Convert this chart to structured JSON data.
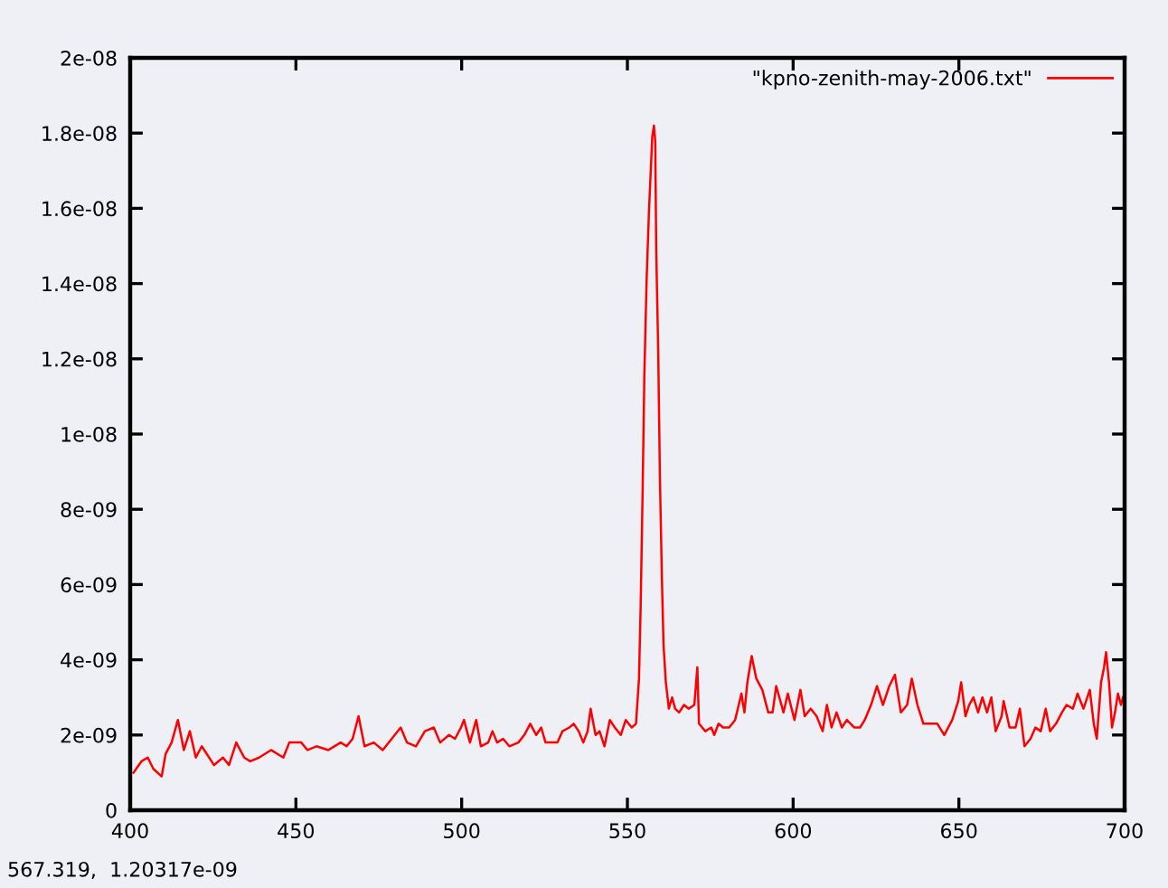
{
  "chart_data": {
    "type": "line",
    "x": [
      401,
      403.4,
      405.3,
      407,
      409.5,
      410.7,
      412.5,
      414.4,
      416.2,
      418,
      419.8,
      421.6,
      425.3,
      428,
      429.8,
      432,
      434.4,
      436.2,
      438.9,
      442.5,
      446.2,
      448,
      451.6,
      453.5,
      456.2,
      459.8,
      463.5,
      465.3,
      467.1,
      468.9,
      470.7,
      473.5,
      476.2,
      478.9,
      481.6,
      483.5,
      486.2,
      488.9,
      491.6,
      493.5,
      496.2,
      498,
      499.8,
      500.7,
      502.5,
      504.4,
      505.8,
      508,
      509.3,
      510.7,
      512.5,
      514.4,
      517.1,
      518.9,
      520.7,
      522.5,
      524,
      525.3,
      527.1,
      528.9,
      530.4,
      532.5,
      533.8,
      535.3,
      536.7,
      538,
      538.9,
      540.4,
      541.6,
      543.1,
      544.7,
      546.2,
      548,
      549.5,
      551.3,
      552.6,
      553.5,
      554,
      554.6,
      555.1,
      555.8,
      556.5,
      557.1,
      557.5,
      558,
      558.4,
      558.7,
      559.3,
      559.8,
      560.4,
      560.9,
      561.6,
      562.5,
      563.5,
      564.4,
      565.6,
      567.1,
      568.5,
      570.2,
      571.1,
      571.6,
      573.5,
      575.3,
      576.2,
      577.5,
      578.9,
      580.7,
      582.5,
      584.4,
      585.3,
      586.2,
      587.5,
      588.9,
      590.7,
      592.5,
      593.8,
      594.9,
      597.1,
      598.4,
      600.4,
      602.2,
      603.5,
      605.3,
      607.1,
      608.9,
      610.2,
      611.6,
      613.1,
      614.7,
      616.2,
      618.4,
      620.2,
      621.6,
      623.5,
      625.3,
      627.1,
      629,
      630.7,
      632.5,
      634.4,
      635.8,
      637.5,
      639.3,
      641.6,
      643.5,
      645.6,
      648,
      649.8,
      650.7,
      652,
      653.1,
      654.4,
      655.8,
      657.1,
      658.5,
      659.8,
      661.1,
      662.9,
      663.5,
      665.3,
      667.1,
      668.4,
      669.8,
      671.6,
      673.1,
      674.7,
      676.2,
      677.5,
      679.3,
      681.1,
      682.5,
      684.4,
      685.8,
      687.6,
      689.5,
      690.7,
      691.6,
      692.9,
      693.8,
      694.4,
      695.3,
      696.2,
      697.1,
      698,
      698.9,
      699.5
    ],
    "series": [
      {
        "name": "\"kpno-zenith-may-2006.txt\"",
        "color": "#ff0000",
        "values": [
          1e-09,
          1.3e-09,
          1.4e-09,
          1.1e-09,
          9e-10,
          1.5e-09,
          1.8e-09,
          2.4e-09,
          1.6e-09,
          2.1e-09,
          1.4e-09,
          1.7e-09,
          1.2e-09,
          1.4e-09,
          1.2e-09,
          1.8e-09,
          1.4e-09,
          1.3e-09,
          1.4e-09,
          1.6e-09,
          1.4e-09,
          1.8e-09,
          1.8e-09,
          1.6e-09,
          1.7e-09,
          1.6e-09,
          1.8e-09,
          1.7e-09,
          1.9e-09,
          2.5e-09,
          1.7e-09,
          1.8e-09,
          1.6e-09,
          1.9e-09,
          2.2e-09,
          1.8e-09,
          1.7e-09,
          2.1e-09,
          2.2e-09,
          1.8e-09,
          2e-09,
          1.9e-09,
          2.2e-09,
          2.4e-09,
          1.8e-09,
          2.4e-09,
          1.7e-09,
          1.8e-09,
          2.1e-09,
          1.8e-09,
          1.9e-09,
          1.7e-09,
          1.8e-09,
          2e-09,
          2.3e-09,
          2e-09,
          2.2e-09,
          1.8e-09,
          1.8e-09,
          1.8e-09,
          2.1e-09,
          2.2e-09,
          2.3e-09,
          2.1e-09,
          1.8e-09,
          2.1e-09,
          2.7e-09,
          2e-09,
          2.1e-09,
          1.7e-09,
          2.4e-09,
          2.2e-09,
          2e-09,
          2.4e-09,
          2.2e-09,
          2.3e-09,
          3.5e-09,
          5.4e-09,
          8.5e-09,
          1.15e-08,
          1.41e-08,
          1.59e-08,
          1.71e-08,
          1.79e-08,
          1.82e-08,
          1.78e-08,
          1.49e-08,
          1.22e-08,
          8.9e-09,
          6.2e-09,
          4.4e-09,
          3.4e-09,
          2.7e-09,
          3e-09,
          2.7e-09,
          2.6e-09,
          2.8e-09,
          2.7e-09,
          2.8e-09,
          3.8e-09,
          2.3e-09,
          2.1e-09,
          2.2e-09,
          2e-09,
          2.3e-09,
          2.2e-09,
          2.2e-09,
          2.4e-09,
          3.1e-09,
          2.6e-09,
          3.4e-09,
          4.1e-09,
          3.5e-09,
          3.2e-09,
          2.6e-09,
          2.6e-09,
          3.3e-09,
          2.6e-09,
          3.1e-09,
          2.4e-09,
          3.2e-09,
          2.5e-09,
          2.7e-09,
          2.5e-09,
          2.1e-09,
          2.8e-09,
          2.2e-09,
          2.6e-09,
          2.2e-09,
          2.4e-09,
          2.2e-09,
          2.2e-09,
          2.4e-09,
          2.8e-09,
          3.3e-09,
          2.8e-09,
          3.3e-09,
          3.6e-09,
          2.6e-09,
          2.8e-09,
          3.5e-09,
          2.8e-09,
          2.3e-09,
          2.3e-09,
          2.3e-09,
          2e-09,
          2.4e-09,
          2.9e-09,
          3.4e-09,
          2.5e-09,
          2.8e-09,
          3e-09,
          2.6e-09,
          3e-09,
          2.6e-09,
          3e-09,
          2.1e-09,
          2.5e-09,
          2.9e-09,
          2.2e-09,
          2.2e-09,
          2.7e-09,
          1.7e-09,
          1.9e-09,
          2.2e-09,
          2.1e-09,
          2.7e-09,
          2.1e-09,
          2.3e-09,
          2.6e-09,
          2.8e-09,
          2.7e-09,
          3.1e-09,
          2.7e-09,
          3.2e-09,
          2.3e-09,
          1.9e-09,
          3.4e-09,
          3.8e-09,
          4.2e-09,
          3.4e-09,
          2.2e-09,
          2.6e-09,
          3.1e-09,
          2.8e-09,
          3e-09
        ]
      }
    ],
    "xlim": [
      400,
      700
    ],
    "xticks": [
      400,
      450,
      500,
      550,
      600,
      650,
      700
    ],
    "ylim": [
      0,
      2e-08
    ],
    "yticks": [
      0,
      2e-09,
      4e-09,
      6e-09,
      8e-09,
      1e-08,
      1.2e-08,
      1.4e-08,
      1.6e-08,
      1.8e-08,
      2e-08
    ],
    "legend": "top right",
    "marker": "none",
    "line_style": "solid",
    "annotations": [
      "567.319,  1.20317e-09"
    ]
  }
}
